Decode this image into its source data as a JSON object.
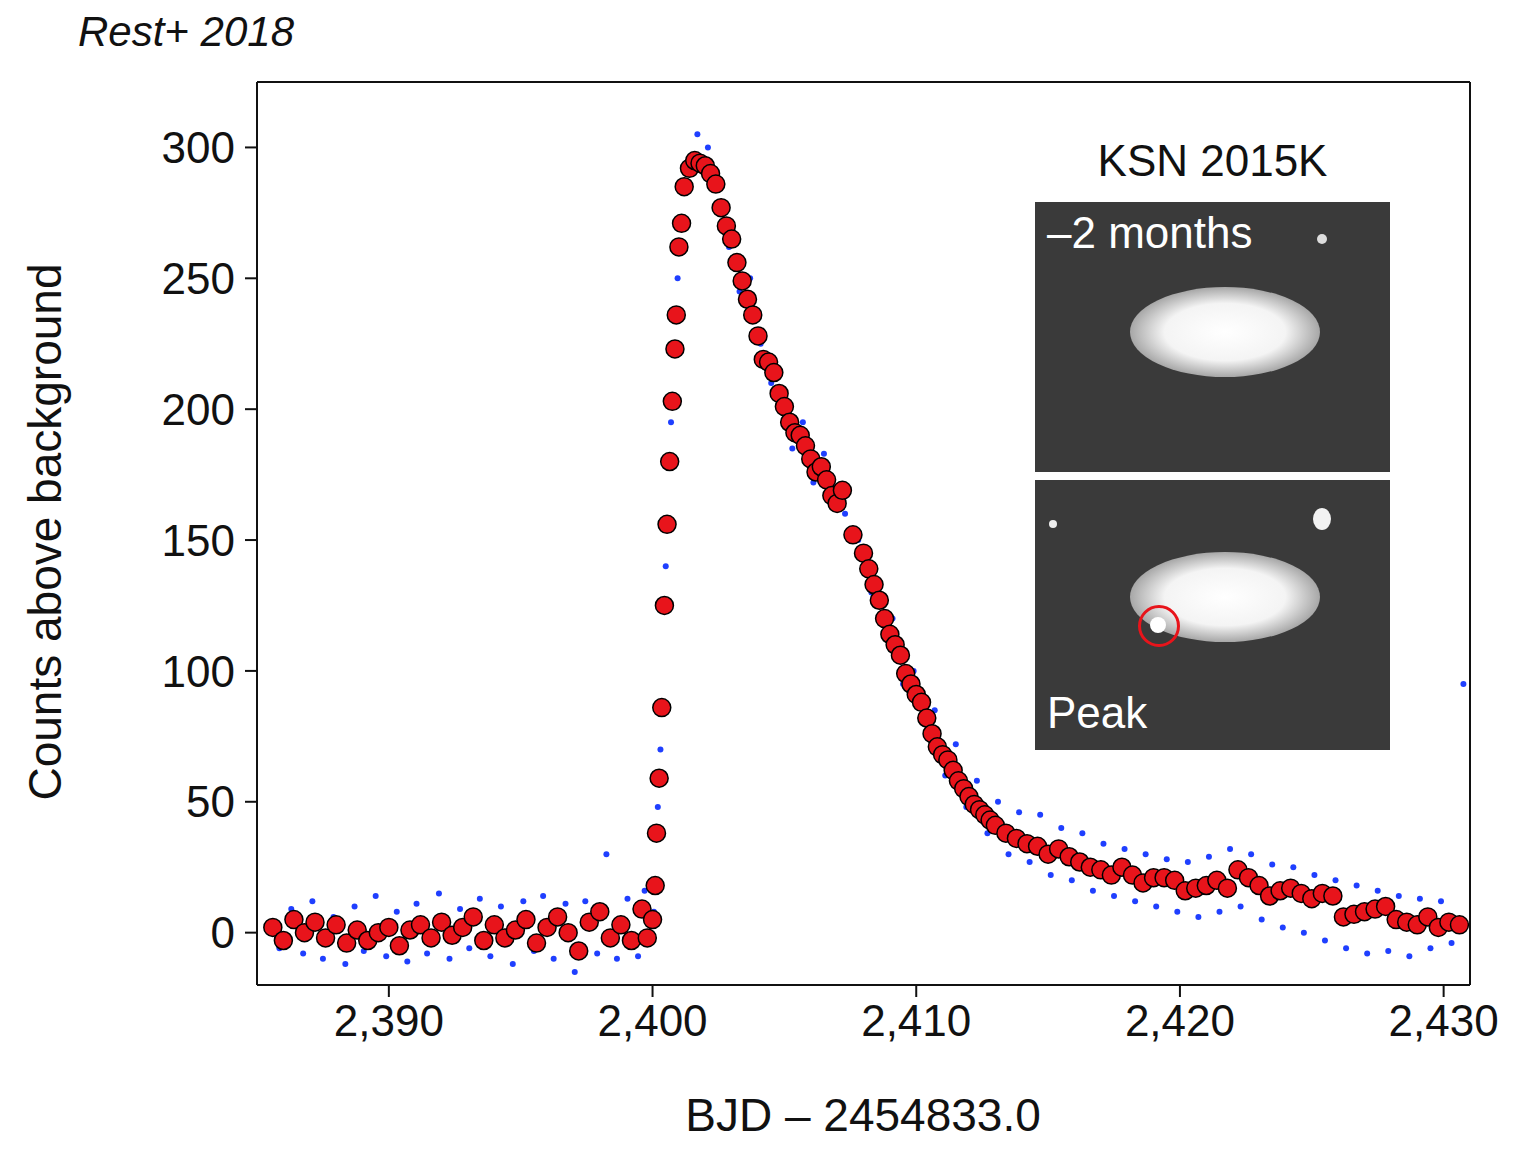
{
  "chart_data": {
    "type": "scatter",
    "title": "Rest+ 2018",
    "x_label": "BJD – 2454833.0",
    "y_label": "Counts above background",
    "annotations": [
      "KSN 2015K",
      "–2 months",
      "Peak"
    ],
    "xlim": [
      2385,
      2431
    ],
    "xticks": [
      {
        "value": 2390,
        "label": "2,390"
      },
      {
        "value": 2400,
        "label": "2,400"
      },
      {
        "value": 2410,
        "label": "2,410"
      },
      {
        "value": 2420,
        "label": "2,420"
      },
      {
        "value": 2430,
        "label": "2,430"
      }
    ],
    "ylim": [
      -20,
      325
    ],
    "yticks": [
      0,
      50,
      100,
      150,
      200,
      250,
      300
    ],
    "grid": false,
    "series": [
      {
        "color": "#1f3fff",
        "marker": "dot",
        "x": [
          2385.85,
          2386.3,
          2386.75,
          2387.1,
          2387.5,
          2387.9,
          2388.35,
          2388.7,
          2389.05,
          2389.5,
          2389.9,
          2390.3,
          2390.7,
          2391.05,
          2391.45,
          2391.9,
          2392.3,
          2392.7,
          2393.05,
          2393.45,
          2393.85,
          2394.25,
          2394.7,
          2395.1,
          2395.5,
          2395.85,
          2396.25,
          2396.7,
          2397.05,
          2397.45,
          2397.9,
          2398.25,
          2398.65,
          2399.05,
          2399.45,
          2399.7,
          2400.05,
          2400.2,
          2400.3,
          2400.5,
          2400.7,
          2400.95,
          2401.3,
          2401.7,
          2402.1,
          2402.5,
          2402.9,
          2403.3,
          2403.7,
          2404.1,
          2404.5,
          2404.9,
          2405.3,
          2405.7,
          2406.1,
          2406.5,
          2406.9,
          2407.3,
          2407.8,
          2408.3,
          2408.7,
          2409.1,
          2409.5,
          2409.9,
          2410.3,
          2410.7,
          2411.1,
          2411.5,
          2411.9,
          2412.3,
          2412.7,
          2413.1,
          2413.5,
          2413.9,
          2414.3,
          2414.7,
          2415.1,
          2415.5,
          2415.9,
          2416.3,
          2416.7,
          2417.1,
          2417.5,
          2417.9,
          2418.3,
          2418.7,
          2419.1,
          2419.5,
          2419.9,
          2420.3,
          2420.7,
          2421.1,
          2421.5,
          2421.9,
          2422.3,
          2422.7,
          2423.1,
          2423.5,
          2423.9,
          2424.3,
          2424.7,
          2425.1,
          2425.5,
          2425.9,
          2426.3,
          2426.7,
          2427.1,
          2427.5,
          2427.9,
          2428.3,
          2428.7,
          2429.1,
          2429.5,
          2429.9,
          2430.3,
          2430.75
        ],
        "values": [
          -6,
          9,
          -8,
          12,
          -10,
          6,
          -12,
          10,
          -7,
          14,
          -9,
          8,
          -11,
          11,
          -8,
          15,
          -10,
          9,
          -6,
          13,
          -9,
          10,
          -12,
          12,
          -7,
          14,
          -10,
          11,
          -15,
          12,
          -8,
          30,
          -10,
          13,
          -9,
          16,
          8,
          48,
          70,
          140,
          195,
          250,
          292,
          305,
          300,
          285,
          262,
          245,
          250,
          225,
          210,
          200,
          185,
          195,
          172,
          183,
          170,
          160,
          150,
          130,
          118,
          120,
          95,
          100,
          80,
          85,
          60,
          72,
          48,
          58,
          38,
          50,
          30,
          46,
          27,
          45,
          22,
          40,
          20,
          38,
          16,
          34,
          14,
          32,
          12,
          30,
          10,
          28,
          8,
          27,
          6,
          29,
          8,
          32,
          10,
          30,
          5,
          26,
          2,
          25,
          0,
          22,
          -3,
          20,
          -6,
          18,
          -8,
          16,
          -7,
          14,
          -9,
          13,
          -6,
          12,
          -4,
          95
        ]
      },
      {
        "color": "#e8141b",
        "marker": "circle",
        "x": [
          2385.6,
          2386.0,
          2386.4,
          2386.8,
          2387.2,
          2387.6,
          2388.0,
          2388.4,
          2388.8,
          2389.2,
          2389.6,
          2390.0,
          2390.4,
          2390.8,
          2391.2,
          2391.6,
          2392.0,
          2392.4,
          2392.8,
          2393.2,
          2393.6,
          2394.0,
          2394.4,
          2394.8,
          2395.2,
          2395.6,
          2396.0,
          2396.4,
          2396.8,
          2397.2,
          2397.6,
          2398.0,
          2398.4,
          2398.8,
          2399.2,
          2399.6,
          2399.8,
          2400.0,
          2400.1,
          2400.15,
          2400.25,
          2400.35,
          2400.45,
          2400.55,
          2400.65,
          2400.75,
          2400.85,
          2400.9,
          2401.0,
          2401.1,
          2401.2,
          2401.4,
          2401.6,
          2401.8,
          2402.0,
          2402.2,
          2402.4,
          2402.6,
          2402.8,
          2403.0,
          2403.2,
          2403.4,
          2403.6,
          2403.8,
          2404.0,
          2404.2,
          2404.4,
          2404.6,
          2404.8,
          2405.0,
          2405.2,
          2405.4,
          2405.6,
          2405.8,
          2406.0,
          2406.2,
          2406.4,
          2406.6,
          2406.8,
          2407.0,
          2407.2,
          2407.6,
          2408.0,
          2408.2,
          2408.4,
          2408.6,
          2408.8,
          2409.0,
          2409.2,
          2409.4,
          2409.6,
          2409.8,
          2410.0,
          2410.2,
          2410.4,
          2410.6,
          2410.8,
          2411.0,
          2411.2,
          2411.4,
          2411.6,
          2411.8,
          2412.0,
          2412.2,
          2412.4,
          2412.6,
          2412.8,
          2413.0,
          2413.4,
          2413.8,
          2414.2,
          2414.6,
          2415.0,
          2415.4,
          2415.8,
          2416.2,
          2416.6,
          2417.0,
          2417.4,
          2417.8,
          2418.2,
          2418.6,
          2419.0,
          2419.4,
          2419.8,
          2420.2,
          2420.6,
          2421.0,
          2421.4,
          2421.8,
          2422.2,
          2422.6,
          2423.0,
          2423.4,
          2423.8,
          2424.2,
          2424.6,
          2425.0,
          2425.4,
          2425.8,
          2426.2,
          2426.6,
          2427.0,
          2427.4,
          2427.8,
          2428.2,
          2428.6,
          2429.0,
          2429.4,
          2429.8,
          2430.2,
          2430.6
        ],
        "values": [
          2,
          -3,
          5,
          0,
          4,
          -2,
          3,
          -4,
          1,
          -3,
          0,
          2,
          -5,
          1,
          3,
          -2,
          4,
          -1,
          2,
          6,
          -3,
          3,
          -2,
          1,
          5,
          -4,
          2,
          6,
          0,
          -7,
          4,
          8,
          -2,
          3,
          -3,
          9,
          -2,
          5,
          18,
          38,
          59,
          86,
          125,
          156,
          180,
          203,
          223,
          236,
          262,
          271,
          285,
          292,
          295,
          294,
          293,
          290,
          286,
          277,
          270,
          265,
          256,
          249,
          242,
          236,
          228,
          219,
          218,
          214,
          206,
          201,
          195,
          191,
          190,
          186,
          181,
          176,
          178,
          173,
          167,
          164,
          169,
          152,
          145,
          139,
          133,
          127,
          120,
          114,
          110,
          106,
          99,
          95,
          91,
          88,
          82,
          76,
          71,
          68,
          66,
          62,
          58,
          55,
          52,
          49,
          47,
          45,
          43,
          41,
          38,
          36,
          34,
          33,
          30,
          32,
          29,
          27,
          25,
          24,
          22,
          25,
          22,
          19,
          21,
          21,
          20,
          16,
          17,
          18,
          20,
          17,
          24,
          21,
          18,
          14,
          16,
          17,
          15,
          13,
          15,
          14,
          6,
          7,
          8,
          9,
          10,
          5,
          4,
          3,
          6,
          2,
          4,
          3
        ]
      }
    ]
  }
}
